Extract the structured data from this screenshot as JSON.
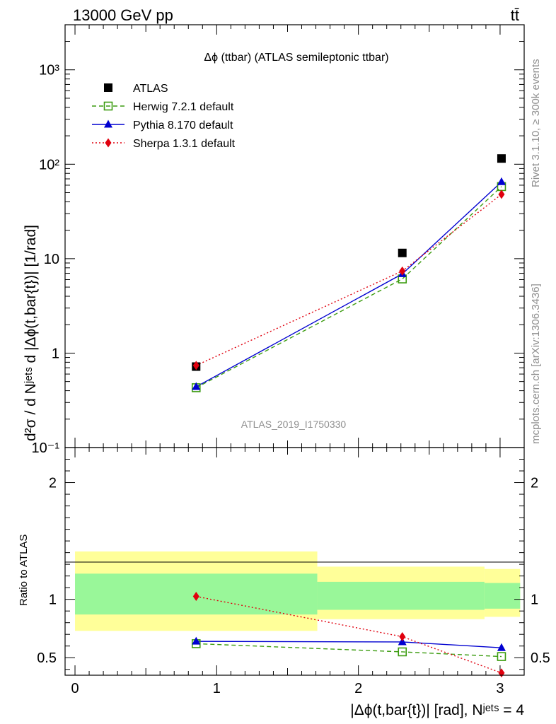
{
  "header": {
    "energy_label": "13000 GeV pp",
    "process_label": "tt̄"
  },
  "side_labels": {
    "rivet": "Rivet 3.1.10, ≥ 300k events",
    "mcplots": "mcplots.cern.ch [arXiv:1306.3436]"
  },
  "chart_data": [
    {
      "type": "scatter",
      "panel": "main",
      "title": "Δϕ (ttbar) (ATLAS semileptonic ttbar)",
      "ylabel": "d²σ / d Nʲᵉᵗˢ d |Δϕ(t,bar{t})| [1/rad]",
      "yscale": "log",
      "ylim": [
        0.1,
        3000
      ],
      "xlim": [
        -0.07,
        3.17
      ],
      "y_tick_labels": [
        "10⁻¹",
        "1",
        "10",
        "10²",
        "10³"
      ],
      "watermark": "ATLAS_2019_I1750330",
      "legend_position": "top-left",
      "x": [
        0.855,
        2.31,
        3.01
      ],
      "series": [
        {
          "name": "ATLAS",
          "values": [
            0.72,
            11.5,
            115
          ],
          "color": "#000000",
          "marker": "filled-square"
        },
        {
          "name": "Herwig 7.2.1 default",
          "values": [
            0.43,
            6.1,
            58
          ],
          "color": "#3c9c10",
          "marker": "open-square",
          "line": "dashed"
        },
        {
          "name": "Pythia 8.170 default",
          "values": [
            0.44,
            6.9,
            65
          ],
          "color": "#0000d0",
          "marker": "filled-triangle",
          "line": "solid"
        },
        {
          "name": "Sherpa 1.3.1 default",
          "values": [
            0.74,
            7.4,
            48
          ],
          "color": "#e0000e",
          "marker": "filled-diamond",
          "line": "dotted"
        }
      ]
    },
    {
      "type": "line",
      "panel": "ratio",
      "ylabel": "Ratio to ATLAS",
      "xlabel": "|Δϕ(t,bar{t})| [rad], Nʲᵉᵗˢ = 4",
      "ylim": [
        0.35,
        2.3
      ],
      "xlim": [
        -0.07,
        3.17
      ],
      "x_ticks": [
        0,
        1,
        2,
        3
      ],
      "y_ticks": [
        0.5,
        1,
        2
      ],
      "bins": [
        {
          "lo": 0.0,
          "hi": 1.71,
          "band_yellow": [
            0.73,
            1.41
          ],
          "band_green": [
            0.87,
            1.22
          ]
        },
        {
          "lo": 1.71,
          "hi": 2.89,
          "band_yellow": [
            0.83,
            1.28
          ],
          "band_green": [
            0.91,
            1.15
          ]
        },
        {
          "lo": 2.89,
          "hi": 3.1416,
          "band_yellow": [
            0.85,
            1.26
          ],
          "band_green": [
            0.92,
            1.14
          ]
        }
      ],
      "x": [
        0.855,
        2.31,
        3.01
      ],
      "series": [
        {
          "name": "Herwig 7.2.1 default",
          "values": [
            0.62,
            0.55,
            0.51
          ],
          "color": "#3c9c10"
        },
        {
          "name": "Pythia 8.170 default",
          "values": [
            0.64,
            0.635,
            0.585
          ],
          "color": "#0000d0"
        },
        {
          "name": "Sherpa 1.3.1 default",
          "values": [
            1.025,
            0.68,
            0.37
          ],
          "color": "#e0000e"
        }
      ]
    }
  ]
}
